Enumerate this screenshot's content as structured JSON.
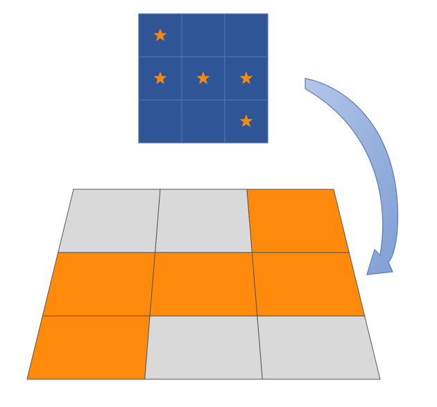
{
  "colors": {
    "grid_fill": "#2f5597",
    "grid_line": "#4a6fb5",
    "star": "#f28a12",
    "orange_tile": "#ff8a0b",
    "gray_tile": "#d9d9d9",
    "floor_line": "#555555",
    "arrow_fill_light": "#b4c7e7",
    "arrow_fill_dark": "#7f9fd4",
    "arrow_stroke": "#5a7bbf"
  },
  "source_grid": {
    "rows": 3,
    "cols": 3,
    "stars": [
      [
        true,
        false,
        false
      ],
      [
        true,
        true,
        true
      ],
      [
        false,
        false,
        true
      ]
    ]
  },
  "floor_grid": {
    "rows": 3,
    "cols": 3,
    "orange": [
      [
        false,
        false,
        true
      ],
      [
        true,
        true,
        true
      ],
      [
        true,
        false,
        false
      ]
    ]
  },
  "icons": {
    "star": "star-icon",
    "arrow": "curved-arrow"
  }
}
